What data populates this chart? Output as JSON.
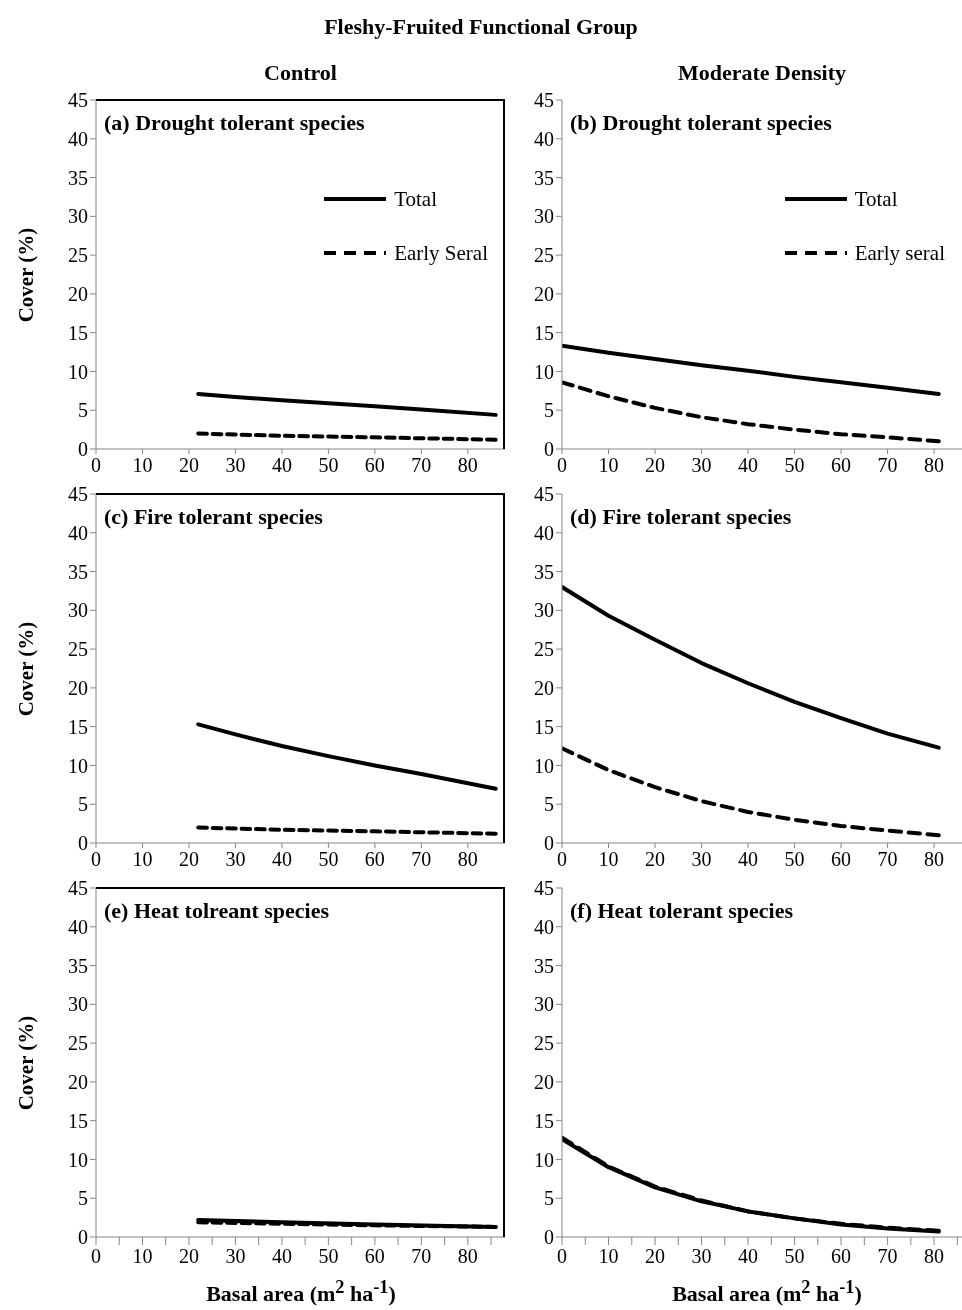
{
  "chart_data": [
    {
      "type": "line",
      "title": "(a) Drought tolerant species",
      "subtitle": "Control",
      "annotations": [
        "Fleshy-Fruited Functional Group"
      ],
      "ylabel": "Cover (%)",
      "xlim": [
        0,
        88
      ],
      "xticks": [
        0,
        10,
        20,
        30,
        40,
        50,
        60,
        70,
        80
      ],
      "ylim": [
        0,
        45
      ],
      "yticks": [
        0,
        5,
        10,
        15,
        20,
        25,
        30,
        35,
        40,
        45
      ],
      "legend": "top right",
      "marker": "none",
      "series": [
        {
          "name": "Total",
          "color": "#000000",
          "line_style": "solid",
          "x": [
            22,
            30,
            40,
            50,
            60,
            70,
            86
          ],
          "values": [
            7.1,
            6.7,
            6.3,
            5.9,
            5.5,
            5.1,
            4.4
          ]
        },
        {
          "name": "Early Seral",
          "color": "#000000",
          "line_style": "dashed",
          "x": [
            22,
            40,
            60,
            86
          ],
          "values": [
            2.0,
            1.7,
            1.5,
            1.2
          ]
        }
      ]
    },
    {
      "type": "line",
      "title": "(b) Drought tolerant species",
      "subtitle": "Moderate Density",
      "xlim": [
        0,
        86
      ],
      "xticks": [
        0,
        10,
        20,
        30,
        40,
        50,
        60,
        70,
        80
      ],
      "ylim": [
        0,
        45
      ],
      "yticks": [
        0,
        5,
        10,
        15,
        20,
        25,
        30,
        35,
        40,
        45
      ],
      "legend": "top right",
      "marker": "none",
      "series": [
        {
          "name": "Total",
          "color": "#000000",
          "line_style": "solid",
          "x": [
            0,
            10,
            20,
            30,
            40,
            50,
            60,
            70,
            81
          ],
          "values": [
            13.3,
            12.4,
            11.6,
            10.8,
            10.1,
            9.3,
            8.6,
            7.9,
            7.1
          ]
        },
        {
          "name": "Early seral",
          "color": "#000000",
          "line_style": "dashed",
          "x": [
            0,
            10,
            20,
            30,
            40,
            50,
            60,
            70,
            81
          ],
          "values": [
            8.6,
            6.8,
            5.3,
            4.1,
            3.2,
            2.5,
            1.9,
            1.5,
            1.0
          ]
        }
      ]
    },
    {
      "type": "line",
      "title": "(c) Fire tolerant species",
      "ylabel": "Cover (%)",
      "xlim": [
        0,
        88
      ],
      "xticks": [
        0,
        10,
        20,
        30,
        40,
        50,
        60,
        70,
        80
      ],
      "ylim": [
        0,
        45
      ],
      "yticks": [
        0,
        5,
        10,
        15,
        20,
        25,
        30,
        35,
        40,
        45
      ],
      "marker": "none",
      "series": [
        {
          "color": "#000000",
          "line_style": "solid",
          "x": [
            22,
            30,
            40,
            50,
            60,
            70,
            86
          ],
          "values": [
            15.3,
            14.0,
            12.5,
            11.2,
            10.0,
            8.9,
            7.0
          ]
        },
        {
          "color": "#000000",
          "line_style": "dashed",
          "x": [
            22,
            40,
            60,
            86
          ],
          "values": [
            2.0,
            1.7,
            1.5,
            1.2
          ]
        }
      ]
    },
    {
      "type": "line",
      "title": "(d) Fire tolerant species",
      "xlim": [
        0,
        86
      ],
      "xticks": [
        0,
        10,
        20,
        30,
        40,
        50,
        60,
        70,
        80
      ],
      "ylim": [
        0,
        45
      ],
      "yticks": [
        0,
        5,
        10,
        15,
        20,
        25,
        30,
        35,
        40,
        45
      ],
      "marker": "none",
      "series": [
        {
          "color": "#000000",
          "line_style": "solid",
          "x": [
            0,
            10,
            20,
            30,
            40,
            50,
            60,
            70,
            81
          ],
          "values": [
            33.0,
            29.3,
            26.2,
            23.2,
            20.6,
            18.2,
            16.1,
            14.1,
            12.3
          ]
        },
        {
          "color": "#000000",
          "line_style": "dashed",
          "x": [
            0,
            10,
            20,
            30,
            40,
            50,
            60,
            70,
            81
          ],
          "values": [
            12.2,
            9.4,
            7.2,
            5.4,
            4.0,
            3.0,
            2.2,
            1.6,
            1.0
          ]
        }
      ]
    },
    {
      "type": "line",
      "title": "(e) Heat tolreant species",
      "ylabel": "Cover (%)",
      "xlabel": "Basal area (m$^{2}$ ha$^{-1}$)",
      "xlim": [
        0,
        88
      ],
      "xticks": [
        0,
        {
          "value": 5,
          "label": null
        },
        10,
        {
          "value": 15,
          "label": null
        },
        20,
        {
          "value": 25,
          "label": null
        },
        30,
        {
          "value": 35,
          "label": null
        },
        40,
        {
          "value": 45,
          "label": null
        },
        50,
        {
          "value": 55,
          "label": null
        },
        60,
        {
          "value": 65,
          "label": null
        },
        70,
        {
          "value": 75,
          "label": null
        },
        80,
        {
          "value": 85,
          "label": null
        }
      ],
      "ylim": [
        0,
        45
      ],
      "yticks": [
        0,
        5,
        10,
        15,
        20,
        25,
        30,
        35,
        40,
        45
      ],
      "marker": "none",
      "series": [
        {
          "color": "#000000",
          "line_style": "solid",
          "x": [
            22,
            40,
            60,
            86
          ],
          "values": [
            2.2,
            1.9,
            1.6,
            1.3
          ]
        },
        {
          "color": "#000000",
          "line_style": "dashed",
          "x": [
            22,
            40,
            60,
            86
          ],
          "values": [
            1.9,
            1.7,
            1.5,
            1.3
          ]
        }
      ]
    },
    {
      "type": "line",
      "title": "(f) Heat tolerant species",
      "xlabel": "Basal area (m$^{2}$ ha$^{-1}$)",
      "xlim": [
        0,
        86
      ],
      "xticks": [
        0,
        {
          "value": 5,
          "label": null
        },
        10,
        {
          "value": 15,
          "label": null
        },
        20,
        {
          "value": 25,
          "label": null
        },
        30,
        {
          "value": 35,
          "label": null
        },
        40,
        {
          "value": 45,
          "label": null
        },
        50,
        {
          "value": 55,
          "label": null
        },
        60,
        {
          "value": 65,
          "label": null
        },
        70,
        {
          "value": 75,
          "label": null
        },
        80,
        {
          "value": 85,
          "label": null
        }
      ],
      "ylim": [
        0,
        45
      ],
      "yticks": [
        0,
        5,
        10,
        15,
        20,
        25,
        30,
        35,
        40,
        45
      ],
      "marker": "none",
      "series": [
        {
          "color": "#000000",
          "line_style": "solid",
          "x": [
            0,
            10,
            20,
            30,
            40,
            50,
            60,
            70,
            81
          ],
          "values": [
            12.6,
            9.0,
            6.4,
            4.6,
            3.3,
            2.4,
            1.6,
            1.1,
            0.7
          ]
        },
        {
          "color": "#000000",
          "line_style": "dashed",
          "x": [
            0,
            10,
            20,
            30,
            40,
            50,
            60,
            70,
            81
          ],
          "values": [
            12.8,
            9.1,
            6.5,
            4.7,
            3.3,
            2.4,
            1.7,
            1.2,
            0.8
          ]
        }
      ]
    }
  ]
}
